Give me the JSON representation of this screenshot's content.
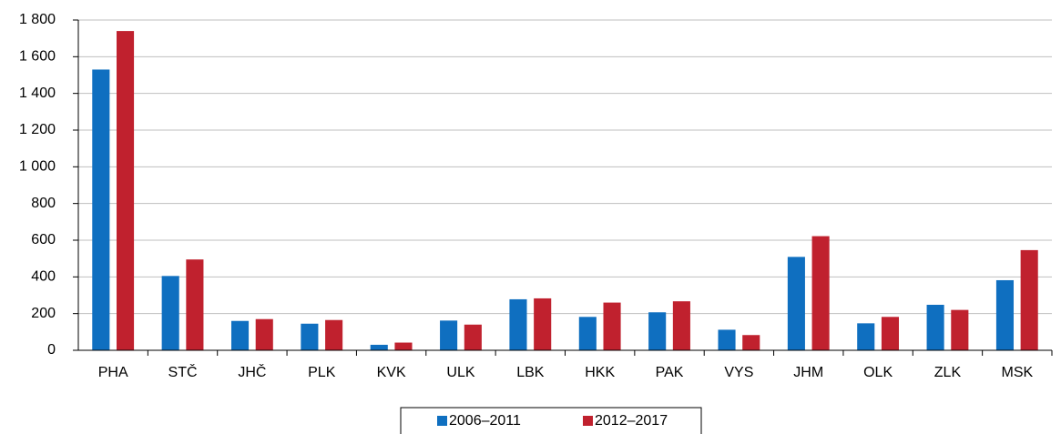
{
  "chart_data": {
    "type": "bar",
    "categories": [
      "PHA",
      "STČ",
      "JHČ",
      "PLK",
      "KVK",
      "ULK",
      "LBK",
      "HKK",
      "PAK",
      "VYS",
      "JHM",
      "OLK",
      "ZLK",
      "MSK"
    ],
    "series": [
      {
        "name": "2006–2011",
        "color": "#0f6fc0",
        "values": [
          1530,
          405,
          160,
          145,
          30,
          162,
          278,
          182,
          207,
          112,
          509,
          147,
          248,
          382
        ]
      },
      {
        "name": "2012–2017",
        "color": "#c0212e",
        "values": [
          1740,
          495,
          170,
          165,
          42,
          140,
          283,
          260,
          267,
          83,
          622,
          182,
          220,
          546
        ]
      }
    ],
    "ylim": [
      0,
      1800
    ],
    "yticks": [
      0,
      200,
      400,
      600,
      800,
      {
        "value": 1000,
        "label": "1 000"
      },
      {
        "value": 1200,
        "label": "1 200"
      },
      {
        "value": 1400,
        "label": "1 400"
      },
      {
        "value": 1600,
        "label": "1 600"
      },
      {
        "value": 1800,
        "label": "1 800"
      }
    ],
    "grid": true,
    "legend": "bottom"
  }
}
